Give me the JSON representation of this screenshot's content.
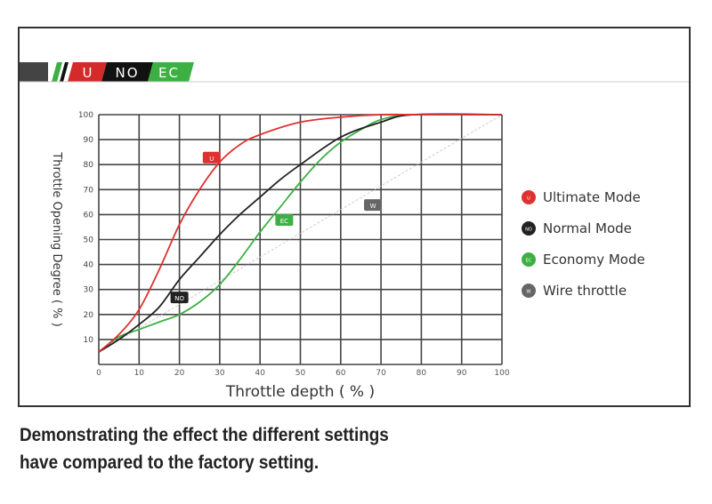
{
  "logo": {
    "text": "U NO EC",
    "segments": [
      "U",
      "NO",
      "EC"
    ]
  },
  "caption": {
    "line1": "Demonstrating the effect the different settings",
    "line2": "have compared to the factory setting."
  },
  "chart_data": {
    "type": "line",
    "title": "",
    "xlabel": "Throttle depth ( % )",
    "ylabel": "Throttle Opening Degree ( % )",
    "xlim": [
      0,
      100
    ],
    "ylim": [
      0,
      100
    ],
    "xticks": [
      0,
      10,
      20,
      30,
      40,
      50,
      60,
      70,
      80,
      90,
      100
    ],
    "yticks": [
      10,
      20,
      30,
      40,
      50,
      60,
      70,
      80,
      90,
      100
    ],
    "grid": true,
    "legend_placement": "right",
    "series": [
      {
        "name": "Ultimate Mode",
        "badge": "U",
        "color": "#e0302f",
        "badge_at": [
          28,
          83
        ],
        "x": [
          0,
          5,
          10,
          15,
          20,
          25,
          30,
          35,
          40,
          50,
          60,
          70,
          80,
          100
        ],
        "y": [
          5,
          12,
          22,
          38,
          56,
          70,
          81,
          88,
          92,
          97,
          99,
          100,
          100,
          100
        ]
      },
      {
        "name": "Normal Mode",
        "badge": "NO",
        "color": "#222222",
        "badge_at": [
          20,
          27
        ],
        "x": [
          0,
          5,
          10,
          15,
          20,
          25,
          30,
          35,
          40,
          45,
          50,
          60,
          70,
          78,
          100
        ],
        "y": [
          5,
          10,
          16,
          23,
          34,
          43,
          52,
          60,
          67,
          74,
          80,
          91,
          97,
          100,
          100
        ]
      },
      {
        "name": "Economy Mode",
        "badge": "EC",
        "color": "#3cb043",
        "badge_at": [
          46,
          58
        ],
        "x": [
          0,
          5,
          10,
          15,
          20,
          25,
          30,
          35,
          40,
          45,
          50,
          55,
          60,
          65,
          70,
          78,
          100
        ],
        "y": [
          5,
          11,
          14,
          17,
          20,
          25,
          32,
          42,
          53,
          63,
          73,
          82,
          89,
          94,
          98,
          100,
          100
        ]
      },
      {
        "name": "Wire throttle",
        "badge": "W",
        "color": "#cccccc",
        "legend_color": "#666666",
        "badge_at": [
          68,
          64
        ],
        "dashed": true,
        "x": [
          0,
          100
        ],
        "y": [
          5,
          100
        ]
      }
    ]
  }
}
